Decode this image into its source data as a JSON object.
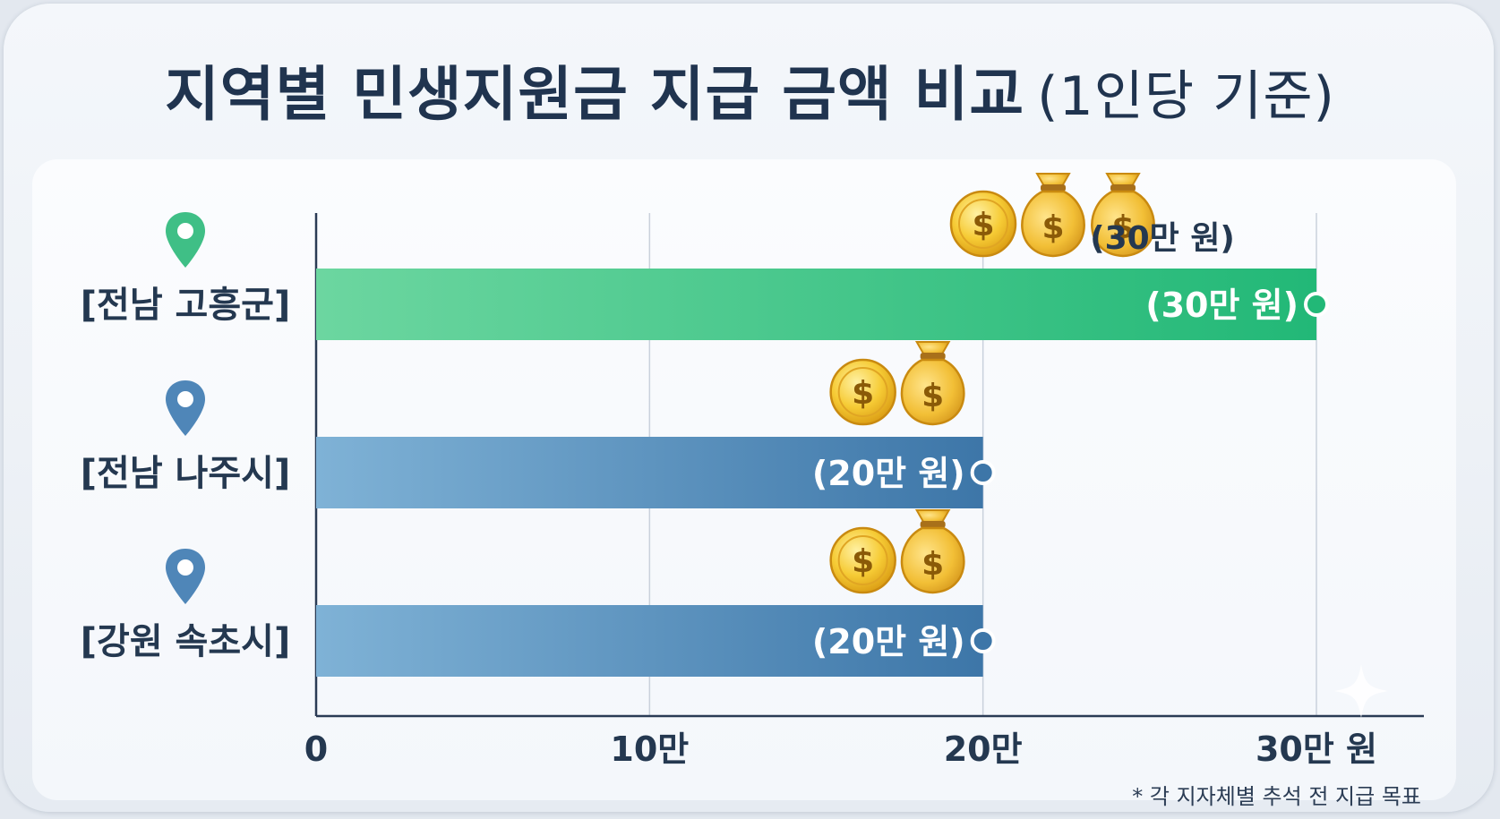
{
  "title": {
    "main": "지역별 민생지원금 지급 금액 비교",
    "sub": "(1인당 기준)"
  },
  "chart_data": {
    "type": "bar",
    "orientation": "horizontal",
    "categories": [
      "[전남 고흥군]",
      "[전남 나주시]",
      "[강원 속초시]"
    ],
    "values": [
      30,
      20,
      20
    ],
    "value_unit": "만 원",
    "value_labels": [
      "(30만 원)",
      "(20만 원)",
      "(20만 원)"
    ],
    "top_annotation": "(30만 원)",
    "xlim": [
      0,
      30
    ],
    "xticks": [
      0,
      10,
      20,
      30
    ],
    "xtick_labels": [
      "0",
      "10만",
      "20만",
      "30만 원"
    ],
    "coin_counts": [
      3,
      2,
      2
    ],
    "grid": true,
    "note": "* 각 지자체별 추석 전 지급 목표"
  },
  "colors": {
    "title": "#20344f",
    "green_bar": "#2fbf80",
    "blue_bar": "#4a86b5",
    "green_pin": "#3fbf86",
    "blue_pin": "#4f86b8",
    "axis": "#2a3b55",
    "gold": "#f2c230"
  },
  "icons": [
    "location-pin-icon",
    "coin-icon",
    "money-bag-icon",
    "sparkle-icon"
  ]
}
